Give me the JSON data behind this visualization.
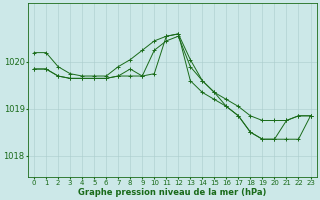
{
  "background_color": "#cce8e8",
  "plot_bg_color": "#cce8e8",
  "line_color": "#1a6b1a",
  "grid_color": "#aacccc",
  "xlabel": "Graphe pression niveau de la mer (hPa)",
  "xlabel_fontsize": 6.0,
  "ylabel_fontsize": 6.0,
  "tick_fontsize": 5.0,
  "xlim": [
    -0.5,
    23.5
  ],
  "ylim": [
    1017.55,
    1021.25
  ],
  "yticks": [
    1018,
    1019,
    1020
  ],
  "line1_x": [
    0,
    1,
    2,
    3,
    4,
    5,
    6,
    7,
    8,
    9,
    10,
    11,
    12,
    13,
    14,
    15,
    16,
    17,
    18,
    19,
    20,
    21,
    22,
    23
  ],
  "line1_y": [
    1020.2,
    1020.2,
    1019.9,
    1019.75,
    1019.7,
    1019.7,
    1019.7,
    1019.9,
    1020.05,
    1020.25,
    1020.45,
    1020.55,
    1020.6,
    1020.05,
    1019.6,
    1019.35,
    1019.2,
    1019.05,
    1018.85,
    1018.75,
    1018.75,
    1018.75,
    1018.85,
    1018.85
  ],
  "line2_x": [
    0,
    1,
    2,
    3,
    4,
    5,
    6,
    7,
    8,
    9,
    10,
    11,
    12,
    13,
    14,
    15,
    16,
    17,
    18,
    19,
    20,
    21,
    22,
    23
  ],
  "line2_y": [
    1019.85,
    1019.85,
    1019.7,
    1019.65,
    1019.65,
    1019.65,
    1019.65,
    1019.7,
    1019.85,
    1019.7,
    1019.75,
    1020.55,
    1020.6,
    1019.6,
    1019.35,
    1019.2,
    1019.05,
    1018.85,
    1018.5,
    1018.35,
    1018.35,
    1018.35,
    1018.35,
    1018.85
  ],
  "line3_x": [
    0,
    1,
    2,
    3,
    4,
    5,
    6,
    7,
    8,
    9,
    10,
    11,
    12,
    13,
    14,
    15,
    16,
    17,
    18,
    19,
    20,
    21,
    22,
    23
  ],
  "line3_y": [
    1019.85,
    1019.85,
    1019.7,
    1019.65,
    1019.65,
    1019.65,
    1019.65,
    1019.7,
    1019.7,
    1019.7,
    1020.25,
    1020.45,
    1020.55,
    1019.9,
    1019.6,
    1019.35,
    1019.05,
    1018.85,
    1018.5,
    1018.35,
    1018.35,
    1018.75,
    1018.85,
    1018.85
  ]
}
